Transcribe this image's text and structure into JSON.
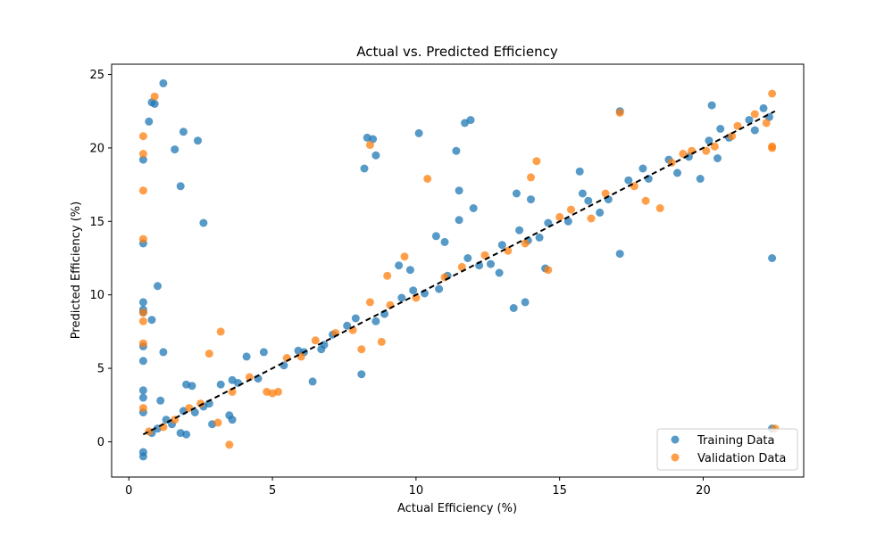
{
  "chart_data": {
    "type": "scatter",
    "title": "Actual vs. Predicted Efficiency",
    "xlabel": "Actual Efficiency (%)",
    "ylabel": "Predicted Efficiency (%)",
    "xlim": [
      -0.6,
      23.5
    ],
    "ylim": [
      -2.4,
      25.7
    ],
    "xticks": [
      0,
      5,
      10,
      15,
      20
    ],
    "yticks": [
      0,
      5,
      10,
      15,
      20,
      25
    ],
    "grid": false,
    "legend_position": "lower-right",
    "reference_line": {
      "style": "dashed",
      "color": "#000000",
      "points": [
        [
          0.5,
          0.5
        ],
        [
          22.5,
          22.5
        ]
      ]
    },
    "series": [
      {
        "name": "Training Data",
        "color": "#1f77b4",
        "points": [
          [
            1.2,
            24.4
          ],
          [
            0.8,
            23.1
          ],
          [
            0.9,
            23.0
          ],
          [
            0.7,
            21.8
          ],
          [
            1.9,
            21.1
          ],
          [
            2.4,
            20.5
          ],
          [
            0.5,
            19.2
          ],
          [
            1.6,
            19.9
          ],
          [
            1.8,
            17.4
          ],
          [
            2.6,
            14.9
          ],
          [
            0.5,
            13.5
          ],
          [
            1.0,
            10.6
          ],
          [
            0.5,
            9.5
          ],
          [
            0.5,
            9.0
          ],
          [
            0.5,
            8.8
          ],
          [
            0.8,
            8.3
          ],
          [
            0.5,
            6.5
          ],
          [
            1.2,
            6.1
          ],
          [
            0.5,
            5.5
          ],
          [
            0.5,
            3.5
          ],
          [
            0.5,
            3.0
          ],
          [
            0.5,
            2.0
          ],
          [
            0.5,
            -0.7
          ],
          [
            0.5,
            -1.0
          ],
          [
            1.1,
            2.8
          ],
          [
            2.0,
            3.9
          ],
          [
            2.2,
            3.8
          ],
          [
            1.8,
            0.6
          ],
          [
            2.0,
            0.5
          ],
          [
            3.5,
            1.8
          ],
          [
            3.6,
            1.5
          ],
          [
            2.9,
            1.2
          ],
          [
            6.4,
            4.1
          ],
          [
            8.1,
            4.6
          ],
          [
            8.3,
            20.7
          ],
          [
            8.5,
            20.6
          ],
          [
            8.2,
            18.6
          ],
          [
            8.6,
            19.5
          ],
          [
            10.1,
            21.0
          ],
          [
            11.7,
            21.7
          ],
          [
            11.9,
            21.9
          ],
          [
            11.4,
            19.8
          ],
          [
            11.5,
            17.1
          ],
          [
            11.5,
            15.1
          ],
          [
            13.4,
            9.1
          ],
          [
            13.8,
            9.5
          ],
          [
            17.1,
            12.8
          ],
          [
            17.1,
            22.5
          ],
          [
            20.3,
            22.9
          ],
          [
            22.4,
            12.5
          ],
          [
            22.4,
            0.9
          ],
          [
            19.9,
            17.9
          ],
          [
            20.5,
            19.3
          ],
          [
            15.7,
            18.4
          ],
          [
            14.0,
            16.5
          ],
          [
            13.5,
            16.9
          ],
          [
            12.9,
            11.5
          ],
          [
            14.5,
            11.8
          ],
          [
            10.7,
            14.0
          ],
          [
            11.0,
            13.6
          ],
          [
            12.0,
            15.9
          ],
          [
            9.8,
            11.7
          ],
          [
            9.4,
            12.0
          ],
          [
            7.1,
            7.3
          ],
          [
            6.1,
            6.1
          ],
          [
            4.7,
            6.1
          ],
          [
            3.6,
            4.2
          ],
          [
            4.1,
            5.8
          ],
          [
            3.2,
            3.9
          ],
          [
            2.8,
            2.6
          ],
          [
            2.3,
            2.0
          ],
          [
            1.5,
            1.2
          ],
          [
            1.0,
            0.9
          ],
          [
            1.3,
            1.5
          ],
          [
            0.8,
            0.6
          ],
          [
            5.4,
            5.2
          ],
          [
            6.8,
            6.6
          ],
          [
            7.6,
            7.9
          ],
          [
            8.9,
            8.7
          ],
          [
            9.5,
            9.8
          ],
          [
            10.3,
            10.1
          ],
          [
            11.1,
            11.3
          ],
          [
            12.2,
            12.0
          ],
          [
            13.0,
            13.4
          ],
          [
            13.9,
            13.7
          ],
          [
            14.6,
            14.9
          ],
          [
            15.3,
            15.0
          ],
          [
            16.0,
            16.4
          ],
          [
            16.7,
            16.5
          ],
          [
            17.4,
            17.8
          ],
          [
            18.1,
            17.9
          ],
          [
            18.8,
            19.2
          ],
          [
            19.5,
            19.4
          ],
          [
            20.2,
            20.5
          ],
          [
            20.9,
            20.7
          ],
          [
            21.6,
            21.9
          ],
          [
            22.3,
            22.1
          ],
          [
            22.1,
            22.7
          ],
          [
            21.8,
            21.2
          ],
          [
            20.6,
            21.3
          ],
          [
            19.1,
            18.3
          ],
          [
            17.9,
            18.6
          ],
          [
            16.4,
            15.6
          ],
          [
            15.8,
            16.9
          ],
          [
            14.3,
            13.9
          ],
          [
            13.6,
            14.4
          ],
          [
            12.6,
            12.1
          ],
          [
            11.8,
            12.5
          ],
          [
            10.8,
            10.4
          ],
          [
            9.9,
            10.3
          ],
          [
            8.6,
            8.2
          ],
          [
            7.9,
            8.4
          ],
          [
            6.7,
            6.3
          ],
          [
            5.9,
            6.2
          ],
          [
            4.5,
            4.3
          ],
          [
            3.8,
            4.0
          ],
          [
            2.6,
            2.4
          ],
          [
            1.9,
            2.1
          ]
        ]
      },
      {
        "name": "Validation Data",
        "color": "#ff7f0e",
        "points": [
          [
            0.9,
            23.5
          ],
          [
            0.5,
            20.8
          ],
          [
            0.5,
            19.6
          ],
          [
            0.5,
            17.1
          ],
          [
            0.5,
            13.8
          ],
          [
            0.5,
            8.8
          ],
          [
            0.5,
            8.2
          ],
          [
            0.5,
            6.7
          ],
          [
            0.5,
            2.3
          ],
          [
            2.8,
            6.0
          ],
          [
            3.2,
            7.5
          ],
          [
            3.5,
            -0.2
          ],
          [
            3.1,
            1.3
          ],
          [
            4.8,
            3.4
          ],
          [
            5.2,
            3.4
          ],
          [
            5.0,
            3.3
          ],
          [
            8.4,
            20.2
          ],
          [
            10.4,
            17.9
          ],
          [
            14.0,
            18.0
          ],
          [
            14.2,
            19.1
          ],
          [
            14.6,
            11.7
          ],
          [
            8.1,
            6.3
          ],
          [
            8.8,
            6.8
          ],
          [
            9.0,
            11.3
          ],
          [
            8.4,
            9.5
          ],
          [
            9.6,
            12.6
          ],
          [
            22.4,
            20.0
          ],
          [
            22.4,
            20.1
          ],
          [
            22.5,
            0.9
          ],
          [
            22.4,
            23.7
          ],
          [
            17.1,
            22.4
          ],
          [
            18.5,
            15.9
          ],
          [
            18.0,
            16.4
          ],
          [
            16.1,
            15.2
          ],
          [
            19.6,
            19.8
          ],
          [
            21.0,
            20.8
          ],
          [
            21.8,
            22.3
          ],
          [
            20.4,
            20.1
          ],
          [
            15.0,
            15.3
          ],
          [
            13.2,
            13.0
          ],
          [
            11.6,
            11.9
          ],
          [
            10.0,
            9.8
          ],
          [
            7.2,
            7.4
          ],
          [
            6.0,
            5.8
          ],
          [
            4.2,
            4.4
          ],
          [
            2.5,
            2.6
          ],
          [
            1.6,
            1.5
          ],
          [
            1.2,
            1.0
          ],
          [
            0.7,
            0.7
          ],
          [
            12.4,
            12.7
          ],
          [
            16.6,
            16.9
          ],
          [
            18.9,
            19.0
          ],
          [
            20.1,
            19.8
          ],
          [
            5.5,
            5.7
          ],
          [
            7.8,
            7.6
          ],
          [
            9.1,
            9.3
          ],
          [
            11.0,
            11.2
          ],
          [
            13.8,
            13.5
          ],
          [
            15.4,
            15.8
          ],
          [
            17.6,
            17.4
          ],
          [
            19.3,
            19.6
          ],
          [
            21.2,
            21.5
          ],
          [
            22.2,
            21.7
          ],
          [
            3.6,
            3.4
          ],
          [
            2.1,
            2.3
          ],
          [
            6.5,
            6.9
          ]
        ]
      }
    ]
  }
}
